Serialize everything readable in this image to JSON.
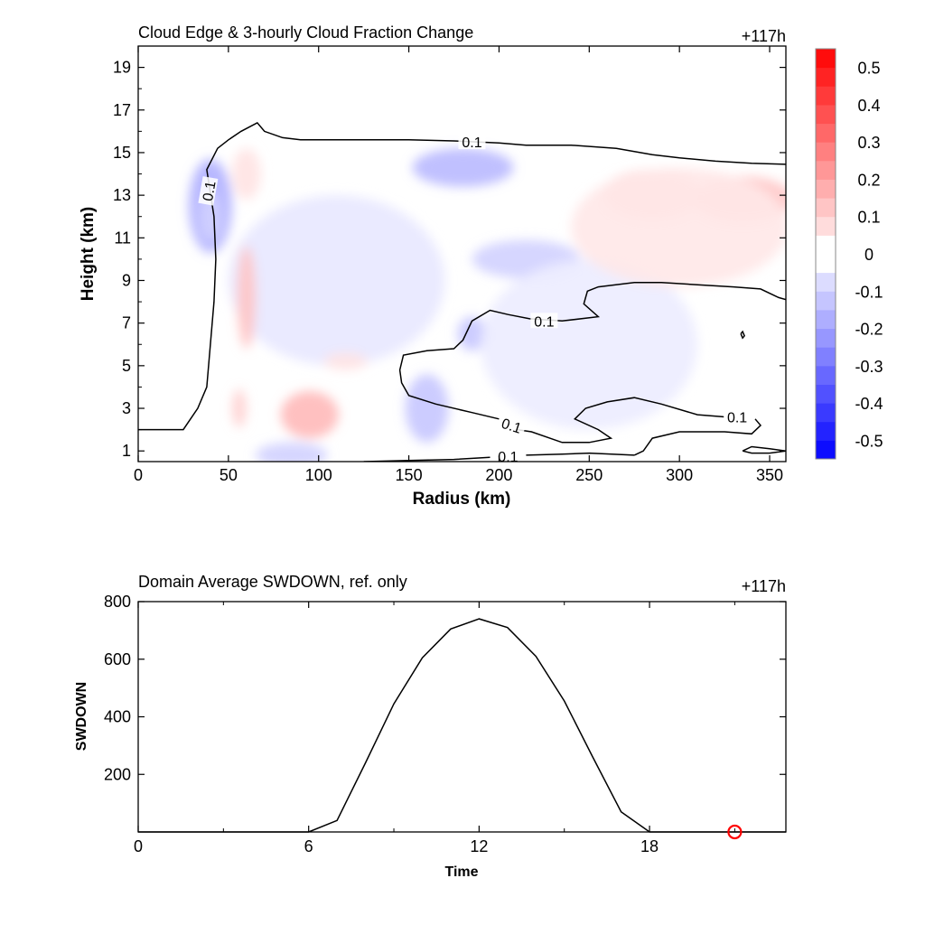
{
  "chart_data": [
    {
      "type": "heatmap",
      "title": "Cloud Edge & 3-hourly Cloud Fraction Change",
      "time_label": "+117h",
      "xlabel": "Radius (km)",
      "ylabel": "Height (km)",
      "xlim": [
        0,
        359
      ],
      "ylim": [
        0.5,
        20
      ],
      "xticks": [
        "0",
        "50",
        "100",
        "150",
        "200",
        "250",
        "300",
        "350"
      ],
      "xtick_values": [
        0,
        50,
        100,
        150,
        200,
        250,
        300,
        350
      ],
      "yticks": [
        "1",
        "3",
        "5",
        "7",
        "9",
        "11",
        "13",
        "15",
        "17",
        "19"
      ],
      "ytick_values": [
        1,
        3,
        5,
        7,
        9,
        11,
        13,
        15,
        17,
        19
      ],
      "colorbar": {
        "ticks": [
          "0.5",
          "0.4",
          "0.3",
          "0.2",
          "0.1",
          "0",
          "-0.1",
          "-0.2",
          "-0.3",
          "-0.4",
          "-0.5"
        ],
        "tick_values": [
          0.5,
          0.4,
          0.3,
          0.2,
          0.1,
          0,
          -0.1,
          -0.2,
          -0.3,
          -0.4,
          -0.5
        ],
        "range": [
          -0.55,
          0.55
        ],
        "levels": 22,
        "positive_color": "#ff0000",
        "negative_color": "#0000ff",
        "neutral_color": "#ffffff"
      },
      "contour_level_label": "0.1",
      "anomalies": [
        {
          "r": 40,
          "z": 12.5,
          "sr": 12,
          "sz": 2.2,
          "v": -0.17
        },
        {
          "r": 40,
          "z": 12,
          "sr": 6,
          "sz": 1.2,
          "v": -0.1
        },
        {
          "r": 180,
          "z": 14.3,
          "sr": 28,
          "sz": 0.9,
          "v": -0.15
        },
        {
          "r": 215,
          "z": 10,
          "sr": 30,
          "sz": 0.9,
          "v": -0.1
        },
        {
          "r": 160,
          "z": 3,
          "sr": 12,
          "sz": 1.6,
          "v": -0.12
        },
        {
          "r": 185,
          "z": 6.5,
          "sr": 8,
          "sz": 0.8,
          "v": -0.12
        },
        {
          "r": 110,
          "z": 9,
          "sr": 60,
          "sz": 4,
          "v": -0.05
        },
        {
          "r": 250,
          "z": 6,
          "sr": 60,
          "sz": 4,
          "v": -0.04
        },
        {
          "r": 85,
          "z": 0.8,
          "sr": 20,
          "sz": 0.6,
          "v": -0.1
        },
        {
          "r": 60,
          "z": 8.2,
          "sr": 5,
          "sz": 2.4,
          "v": 0.13
        },
        {
          "r": 56,
          "z": 3,
          "sr": 4,
          "sz": 0.9,
          "v": 0.1
        },
        {
          "r": 95,
          "z": 2.7,
          "sr": 16,
          "sz": 1.1,
          "v": 0.15
        },
        {
          "r": 60,
          "z": 14,
          "sr": 8,
          "sz": 1.2,
          "v": 0.06
        },
        {
          "r": 285,
          "z": 13,
          "sr": 28,
          "sz": 1.2,
          "v": 0.1
        },
        {
          "r": 335,
          "z": 12.8,
          "sr": 28,
          "sz": 1.1,
          "v": 0.12
        },
        {
          "r": 300,
          "z": 11.5,
          "sr": 60,
          "sz": 2.8,
          "v": 0.05
        },
        {
          "r": 115,
          "z": 5.2,
          "sr": 12,
          "sz": 0.4,
          "v": 0.06
        }
      ],
      "contours": [
        {
          "level": 0.1,
          "points": [
            [
              0,
              2
            ],
            [
              25,
              2
            ],
            [
              33,
              3
            ],
            [
              38,
              4
            ],
            [
              40,
              6
            ],
            [
              42,
              8
            ],
            [
              43,
              10
            ],
            [
              42,
              12
            ],
            [
              38,
              14.2
            ],
            [
              44,
              15.2
            ],
            [
              50,
              15.6
            ],
            [
              57,
              16
            ],
            [
              66,
              16.4
            ],
            [
              70,
              16
            ],
            [
              80,
              15.7
            ],
            [
              90,
              15.6
            ],
            [
              120,
              15.6
            ],
            [
              150,
              15.6
            ],
            [
              175,
              15.55
            ],
            [
              200,
              15.45
            ],
            [
              215,
              15.35
            ],
            [
              240,
              15.35
            ],
            [
              265,
              15.2
            ],
            [
              285,
              14.9
            ],
            [
              300,
              14.75
            ],
            [
              320,
              14.6
            ],
            [
              340,
              14.5
            ],
            [
              359,
              14.45
            ]
          ]
        },
        {
          "level": 0.1,
          "points": [
            [
              359,
              8.1
            ],
            [
              355,
              8.2
            ],
            [
              345,
              8.6
            ],
            [
              330,
              8.7
            ],
            [
              310,
              8.8
            ],
            [
              290,
              8.9
            ],
            [
              275,
              8.9
            ],
            [
              255,
              8.7
            ],
            [
              249,
              8.5
            ],
            [
              247,
              7.9
            ],
            [
              255,
              7.3
            ],
            [
              235,
              7.1
            ],
            [
              217,
              7.2
            ],
            [
              205,
              7.4
            ],
            [
              195,
              7.6
            ],
            [
              185,
              7.1
            ],
            [
              180,
              6.2
            ],
            [
              175,
              5.8
            ],
            [
              160,
              5.7
            ],
            [
              147,
              5.5
            ],
            [
              145,
              4.8
            ],
            [
              146,
              4.2
            ],
            [
              150,
              3.6
            ],
            [
              165,
              3.2
            ],
            [
              185,
              2.8
            ],
            [
              200,
              2.5
            ]
          ]
        },
        {
          "level": 0.1,
          "points": [
            [
              210,
              2.0
            ],
            [
              218,
              1.9
            ],
            [
              235,
              1.4
            ],
            [
              250,
              1.4
            ],
            [
              262,
              1.6
            ],
            [
              255,
              2.0
            ],
            [
              242,
              2.5
            ],
            [
              248,
              3.0
            ],
            [
              260,
              3.3
            ],
            [
              275,
              3.5
            ],
            [
              290,
              3.2
            ],
            [
              310,
              2.7
            ],
            [
              325,
              2.6
            ]
          ]
        },
        {
          "level": 0.1,
          "points": [
            [
              342,
              2.5
            ],
            [
              345,
              2.2
            ],
            [
              340,
              1.8
            ],
            [
              325,
              1.9
            ],
            [
              300,
              1.9
            ],
            [
              285,
              1.6
            ],
            [
              280,
              1.0
            ],
            [
              275,
              0.8
            ]
          ]
        },
        {
          "level": 0.1,
          "points": [
            [
              275,
              0.8
            ],
            [
              250,
              0.9
            ],
            [
              235,
              0.85
            ],
            [
              215,
              0.8
            ]
          ]
        },
        {
          "level": 0.1,
          "points": [
            [
              195,
              0.7
            ],
            [
              175,
              0.6
            ],
            [
              150,
              0.55
            ],
            [
              125,
              0.5
            ]
          ]
        },
        {
          "level": 0.1,
          "points": [
            [
              335,
              1.0
            ],
            [
              340,
              1.2
            ],
            [
              350,
              1.1
            ],
            [
              359,
              1.0
            ],
            [
              350,
              0.9
            ],
            [
              340,
              0.9
            ],
            [
              335,
              1.0
            ]
          ]
        },
        {
          "level": 0.1,
          "points": [
            [
              334,
              6.5
            ],
            [
              335,
              6.6
            ],
            [
              336,
              6.4
            ],
            [
              335,
              6.3
            ],
            [
              334,
              6.5
            ]
          ]
        }
      ],
      "contour_labels": [
        {
          "r": 185,
          "z": 15.5,
          "text": "0.1",
          "angle": 0
        },
        {
          "r": 39,
          "z": 13.2,
          "text": "0.1",
          "angle": -80
        },
        {
          "r": 225,
          "z": 7.1,
          "text": "0.1",
          "angle": 0
        },
        {
          "r": 207,
          "z": 2.2,
          "text": "0.1",
          "angle": 18
        },
        {
          "r": 205,
          "z": 0.75,
          "text": "0.1",
          "angle": 0
        },
        {
          "r": 332,
          "z": 2.6,
          "text": "0.1",
          "angle": 0
        }
      ]
    },
    {
      "type": "line",
      "title": "Domain Average SWDOWN, ref. only",
      "time_label": "+117h",
      "xlabel": "Time",
      "ylabel": "SWDOWN",
      "xlim": [
        0,
        22.8
      ],
      "ylim": [
        0,
        800
      ],
      "xticks": [
        "0",
        "6",
        "12",
        "18"
      ],
      "xtick_values": [
        0,
        6,
        12,
        18
      ],
      "minor_xtick_values": [
        3,
        9,
        15,
        21
      ],
      "yticks": [
        "200",
        "400",
        "600",
        "800"
      ],
      "ytick_values": [
        200,
        400,
        600,
        800
      ],
      "series": [
        {
          "name": "SWDOWN",
          "color": "#000000",
          "x": [
            0,
            1,
            2,
            3,
            4,
            5,
            6,
            7,
            8,
            9,
            10,
            11,
            12,
            13,
            14,
            15,
            16,
            17,
            18,
            19,
            20,
            21,
            22,
            22.8
          ],
          "y": [
            0,
            0,
            0,
            0,
            0,
            0,
            0,
            40,
            240,
            445,
            605,
            705,
            740,
            710,
            610,
            455,
            260,
            70,
            0,
            0,
            0,
            0,
            0,
            0
          ]
        }
      ],
      "marker": {
        "x": 21,
        "y": 0,
        "color": "#ff0000",
        "shape": "circle"
      }
    }
  ]
}
